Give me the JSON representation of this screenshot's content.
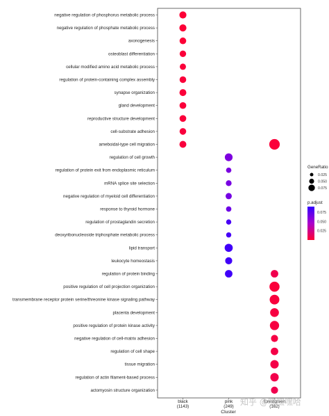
{
  "chart_data": {
    "type": "scatter",
    "xlabel": "Cluster",
    "clusters": [
      {
        "name": "black",
        "count": "(1143)"
      },
      {
        "name": "pink",
        "count": "(249)"
      },
      {
        "name": "forestgreen",
        "count": "(162)"
      }
    ],
    "terms": [
      "negative regulation of phosphorus metabolic process",
      "negative regulation of phosphate metabolic process",
      "axonogenesis",
      "osteoblast differentiation",
      "cellular modified amino acid metabolic process",
      "regulation of protein-containing complex assembly",
      "synapse organization",
      "gland development",
      "reproductive structure development",
      "cell-substrate adhesion",
      "ameboidal-type cell migration",
      "regulation of cell growth",
      "regulation of protein exit from endoplasmic reticulum",
      "mRNA splice site selection",
      "negative regulation of myeloid cell differentiation",
      "response to thyroid hormone",
      "regulation of prostaglandin secretion",
      "deoxyribonucleoside triphosphate metabolic process",
      "lipid transport",
      "leukocyte homeostasis",
      "regulation of protein binding",
      "positive regulation of cell projection organization",
      "transmembrane receptor protein serine/threonine kinase signaling pathway",
      "placenta development",
      "positive regulation of protein kinase activity",
      "negative regulation of cell-matrix adhesion",
      "regulation of cell shape",
      "tissue migration",
      "regulation of actin filament-based process",
      "actomyosin structure organization"
    ],
    "points": [
      {
        "cluster": 0,
        "term": 0,
        "gene_ratio": 0.05,
        "p_adjust": 0.001
      },
      {
        "cluster": 0,
        "term": 1,
        "gene_ratio": 0.05,
        "p_adjust": 0.001
      },
      {
        "cluster": 0,
        "term": 2,
        "gene_ratio": 0.045,
        "p_adjust": 0.001
      },
      {
        "cluster": 0,
        "term": 3,
        "gene_ratio": 0.043,
        "p_adjust": 0.002
      },
      {
        "cluster": 0,
        "term": 4,
        "gene_ratio": 0.04,
        "p_adjust": 0.002
      },
      {
        "cluster": 0,
        "term": 5,
        "gene_ratio": 0.045,
        "p_adjust": 0.002
      },
      {
        "cluster": 0,
        "term": 6,
        "gene_ratio": 0.048,
        "p_adjust": 0.002
      },
      {
        "cluster": 0,
        "term": 7,
        "gene_ratio": 0.046,
        "p_adjust": 0.002
      },
      {
        "cluster": 0,
        "term": 8,
        "gene_ratio": 0.046,
        "p_adjust": 0.002
      },
      {
        "cluster": 0,
        "term": 9,
        "gene_ratio": 0.045,
        "p_adjust": 0.003
      },
      {
        "cluster": 0,
        "term": 10,
        "gene_ratio": 0.048,
        "p_adjust": 0.003
      },
      {
        "cluster": 2,
        "term": 10,
        "gene_ratio": 0.09,
        "p_adjust": 0.002
      },
      {
        "cluster": 1,
        "term": 11,
        "gene_ratio": 0.058,
        "p_adjust": 0.062
      },
      {
        "cluster": 1,
        "term": 12,
        "gene_ratio": 0.03,
        "p_adjust": 0.063
      },
      {
        "cluster": 1,
        "term": 13,
        "gene_ratio": 0.035,
        "p_adjust": 0.064
      },
      {
        "cluster": 1,
        "term": 14,
        "gene_ratio": 0.04,
        "p_adjust": 0.065
      },
      {
        "cluster": 1,
        "term": 15,
        "gene_ratio": 0.03,
        "p_adjust": 0.068
      },
      {
        "cluster": 1,
        "term": 16,
        "gene_ratio": 0.028,
        "p_adjust": 0.082
      },
      {
        "cluster": 1,
        "term": 17,
        "gene_ratio": 0.028,
        "p_adjust": 0.083
      },
      {
        "cluster": 1,
        "term": 18,
        "gene_ratio": 0.062,
        "p_adjust": 0.085
      },
      {
        "cluster": 1,
        "term": 19,
        "gene_ratio": 0.05,
        "p_adjust": 0.085
      },
      {
        "cluster": 1,
        "term": 20,
        "gene_ratio": 0.055,
        "p_adjust": 0.085
      },
      {
        "cluster": 2,
        "term": 20,
        "gene_ratio": 0.055,
        "p_adjust": 0.008
      },
      {
        "cluster": 2,
        "term": 21,
        "gene_ratio": 0.085,
        "p_adjust": 0.002
      },
      {
        "cluster": 2,
        "term": 22,
        "gene_ratio": 0.08,
        "p_adjust": 0.003
      },
      {
        "cluster": 2,
        "term": 23,
        "gene_ratio": 0.07,
        "p_adjust": 0.004
      },
      {
        "cluster": 2,
        "term": 24,
        "gene_ratio": 0.075,
        "p_adjust": 0.004
      },
      {
        "cluster": 2,
        "term": 25,
        "gene_ratio": 0.05,
        "p_adjust": 0.005
      },
      {
        "cluster": 2,
        "term": 26,
        "gene_ratio": 0.055,
        "p_adjust": 0.006
      },
      {
        "cluster": 2,
        "term": 27,
        "gene_ratio": 0.065,
        "p_adjust": 0.006
      },
      {
        "cluster": 2,
        "term": 28,
        "gene_ratio": 0.065,
        "p_adjust": 0.007
      },
      {
        "cluster": 2,
        "term": 29,
        "gene_ratio": 0.05,
        "p_adjust": 0.008
      }
    ],
    "legend_size": {
      "title": "GeneRatio",
      "labels": [
        "0.025",
        "0.050",
        "0.075"
      ],
      "values": [
        0.025,
        0.05,
        0.075
      ]
    },
    "legend_color": {
      "title": "p.adjust",
      "labels": [
        "0.075",
        "0.050",
        "0.025"
      ],
      "values": [
        0.075,
        0.05,
        0.025
      ],
      "low_color": "#ff0033",
      "high_color": "#3300ff",
      "range": [
        0,
        0.09
      ]
    },
    "legend_placement": "right",
    "grid": false
  },
  "watermark": "知乎 @嘿嘿嘿哈"
}
